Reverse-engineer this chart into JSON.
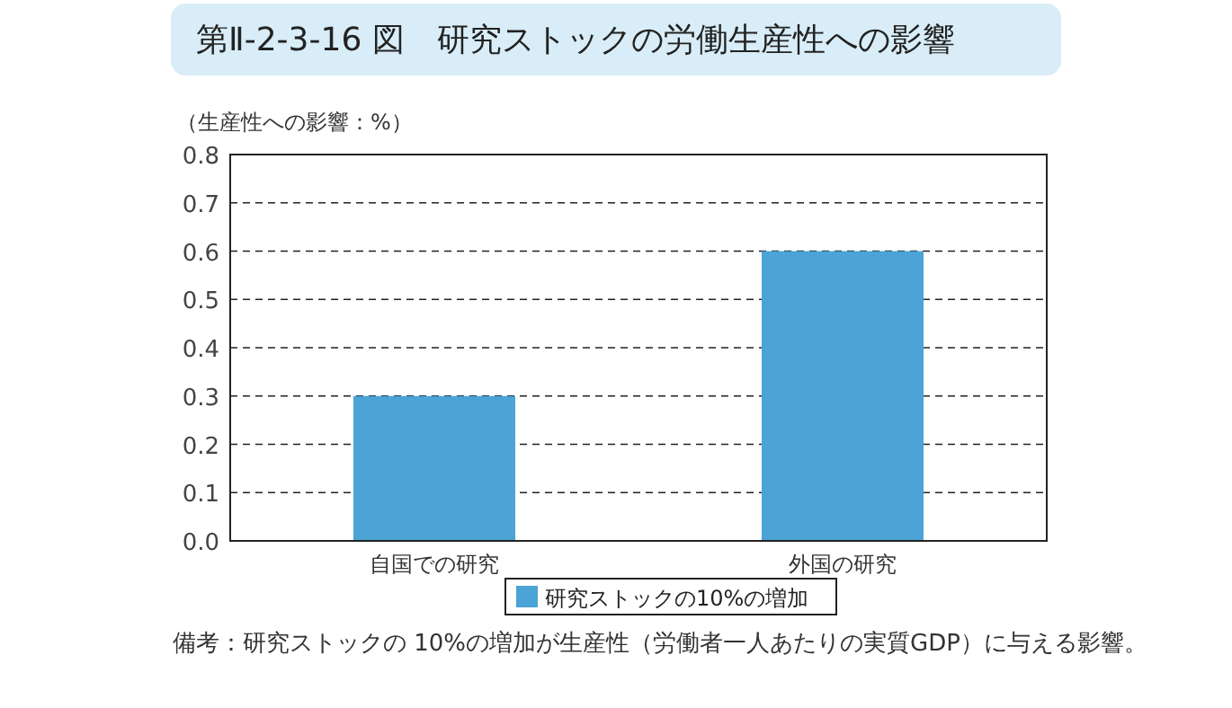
{
  "chart_data": {
    "type": "bar",
    "title": "第Ⅱ-2-3-16 図　研究ストックの労働生産性への影響",
    "ylabel": "（生産性への影響：%）",
    "categories": [
      "自国での研究",
      "外国の研究"
    ],
    "series": [
      {
        "name": "研究ストックの10%の増加",
        "color": "#4ba3d6",
        "values": [
          0.3,
          0.6
        ]
      }
    ],
    "ylim": [
      0,
      0.8
    ],
    "yticks": [
      {
        "value": 0,
        "label": "0.0"
      },
      0.1,
      0.2,
      0.3,
      0.4,
      0.5,
      0.6,
      0.7,
      0.8
    ],
    "grid": "y",
    "legend": "bottom",
    "annotations": [
      "備考：研究ストックの 10%の増加が生産性（労働者一人あたりの実質GDP）に与える影響。"
    ]
  }
}
